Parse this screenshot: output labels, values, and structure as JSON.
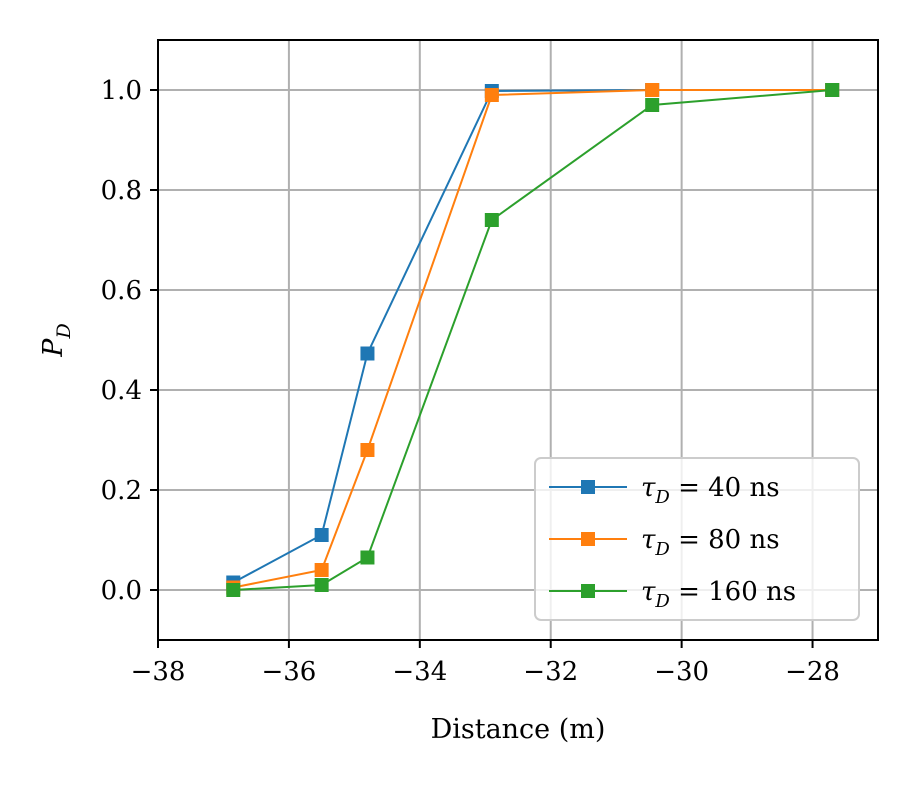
{
  "chart_data": {
    "type": "line",
    "title": "",
    "xlabel": "Distance (m)",
    "ylabel": "P",
    "ylabel_sub": "D",
    "xlim": [
      -38,
      -27
    ],
    "ylim": [
      -0.1,
      1.1
    ],
    "xticks": [
      -38,
      -36,
      -34,
      -32,
      -30,
      -28
    ],
    "yticks": [
      0.0,
      0.2,
      0.4,
      0.6,
      0.8,
      1.0
    ],
    "xtick_labels": [
      "−38",
      "−36",
      "−34",
      "−32",
      "−30",
      "−28"
    ],
    "ytick_labels": [
      "0.0",
      "0.2",
      "0.4",
      "0.6",
      "0.8",
      "1.0"
    ],
    "grid": true,
    "legend_position": "lower-right",
    "x": [
      -36.85,
      -35.5,
      -34.8,
      -32.9,
      -30.45,
      -27.7
    ],
    "series": [
      {
        "name": "τ_D = 40 ns",
        "symbol": "τ",
        "sub": "D",
        "rest": " = 40 ns",
        "color": "#1f77b4",
        "values": [
          0.015,
          0.11,
          0.473,
          0.998,
          1.0,
          1.0
        ]
      },
      {
        "name": "τ_D = 80 ns",
        "symbol": "τ",
        "sub": "D",
        "rest": " = 80 ns",
        "color": "#ff7f0e",
        "values": [
          0.005,
          0.04,
          0.28,
          0.99,
          1.0,
          1.0
        ]
      },
      {
        "name": "τ_D = 160 ns",
        "symbol": "τ",
        "sub": "D",
        "rest": " = 160 ns",
        "color": "#2ca02c",
        "values": [
          0.0,
          0.01,
          0.065,
          0.74,
          0.97,
          1.0
        ]
      }
    ]
  }
}
